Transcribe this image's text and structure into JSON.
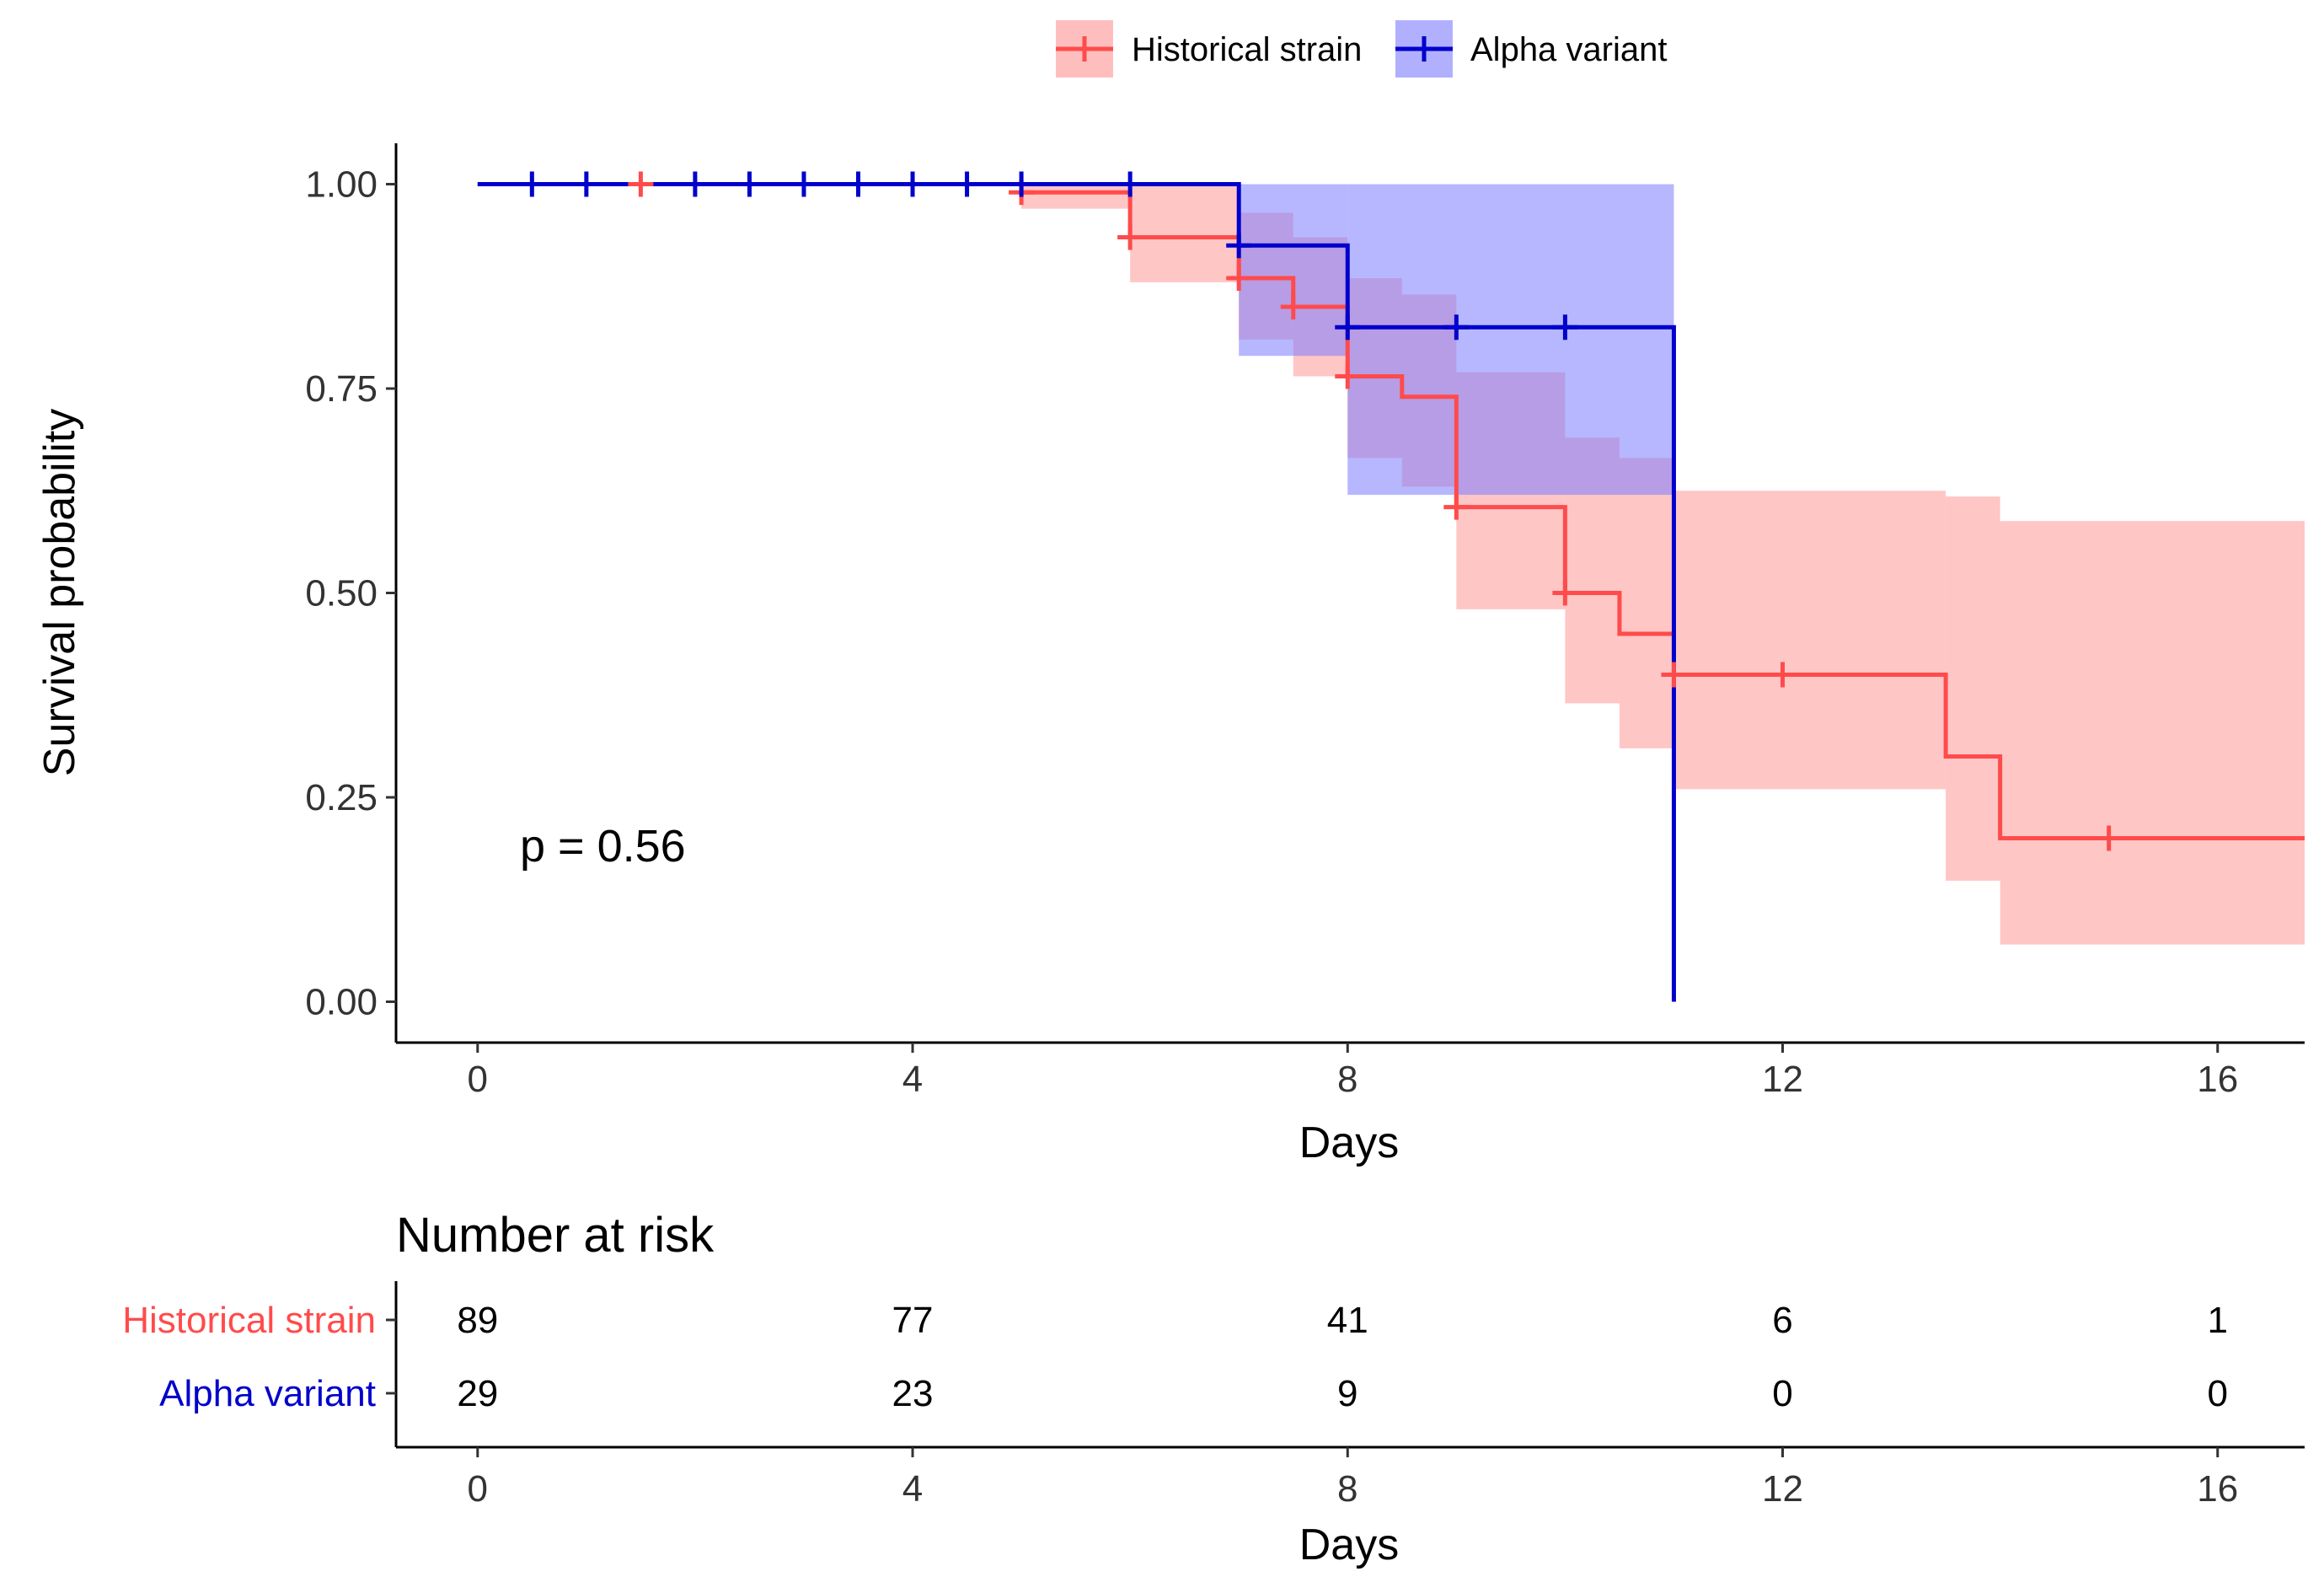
{
  "colors": {
    "historical": "#ff4b4b",
    "historical_band": "#ffa3a3",
    "alpha": "#0000cc",
    "alpha_band": "#7b7bff",
    "axis": "#000000"
  },
  "legend": {
    "items": [
      {
        "label": "Historical strain"
      },
      {
        "label": "Alpha variant"
      }
    ]
  },
  "p_value_text": "p = 0.56",
  "risk_table": {
    "title": "Number at risk",
    "rows": [
      {
        "label": "Historical strain",
        "values": [
          "89",
          "77",
          "41",
          "6",
          "1"
        ]
      },
      {
        "label": "Alpha variant",
        "values": [
          "29",
          "23",
          "9",
          "0",
          "0"
        ]
      }
    ],
    "x_ticks": [
      "0",
      "4",
      "8",
      "12",
      "16"
    ],
    "xlabel": "Days"
  },
  "chart_data": {
    "type": "line",
    "subtype": "kaplan-meier-step",
    "title": "",
    "xlabel": "Days",
    "ylabel": "Survival probability",
    "xlim": [
      -0.75,
      16.8
    ],
    "ylim": [
      -0.05,
      1.05
    ],
    "x_ticks": [
      0,
      4,
      8,
      12,
      16
    ],
    "x_tick_labels": [
      "0",
      "4",
      "8",
      "12",
      "16"
    ],
    "y_ticks": [
      0,
      0.25,
      0.5,
      0.75,
      1.0
    ],
    "y_tick_labels": [
      "0.00",
      "0.25",
      "0.50",
      "0.75",
      "1.00"
    ],
    "grid": false,
    "legend_position": "top",
    "series": [
      {
        "name": "Historical strain",
        "steps": [
          {
            "x": 0,
            "y": 1.0,
            "lower": 1.0,
            "upper": 1.0
          },
          {
            "x": 5,
            "y": 0.99,
            "lower": 0.97,
            "upper": 1.0
          },
          {
            "x": 6,
            "y": 0.935,
            "lower": 0.88,
            "upper": 1.0
          },
          {
            "x": 7,
            "y": 0.885,
            "lower": 0.81,
            "upper": 0.965
          },
          {
            "x": 7.5,
            "y": 0.85,
            "lower": 0.765,
            "upper": 0.935
          },
          {
            "x": 8,
            "y": 0.765,
            "lower": 0.665,
            "upper": 0.885
          },
          {
            "x": 8.5,
            "y": 0.74,
            "lower": 0.63,
            "upper": 0.865
          },
          {
            "x": 9,
            "y": 0.605,
            "lower": 0.48,
            "upper": 0.77
          },
          {
            "x": 10,
            "y": 0.5,
            "lower": 0.365,
            "upper": 0.69
          },
          {
            "x": 10.5,
            "y": 0.45,
            "lower": 0.31,
            "upper": 0.665
          },
          {
            "x": 11,
            "y": 0.4,
            "lower": 0.26,
            "upper": 0.625
          },
          {
            "x": 13.5,
            "y": 0.3,
            "lower": 0.148,
            "upper": 0.618
          },
          {
            "x": 14,
            "y": 0.2,
            "lower": 0.07,
            "upper": 0.588
          }
        ],
        "end_x": 16.8,
        "censor_x": [
          1.5,
          5.0,
          6.0,
          7.0,
          7.5,
          8.0,
          9.0,
          10.0,
          11.0,
          12.0,
          15.0
        ]
      },
      {
        "name": "Alpha variant",
        "steps": [
          {
            "x": 0,
            "y": 1.0,
            "lower": 1.0,
            "upper": 1.0
          },
          {
            "x": 7,
            "y": 0.925,
            "lower": 0.79,
            "upper": 1.0
          },
          {
            "x": 8,
            "y": 0.825,
            "lower": 0.62,
            "upper": 1.0
          },
          {
            "x": 11,
            "y": 0.0,
            "lower": 0.0,
            "upper": 0.0
          }
        ],
        "end_x": 11,
        "censor_x": [
          0.5,
          1.0,
          2.0,
          2.5,
          3.0,
          3.5,
          4.0,
          4.5,
          5.0,
          6.0,
          7.0,
          8.0,
          9.0,
          10.0
        ]
      }
    ]
  }
}
